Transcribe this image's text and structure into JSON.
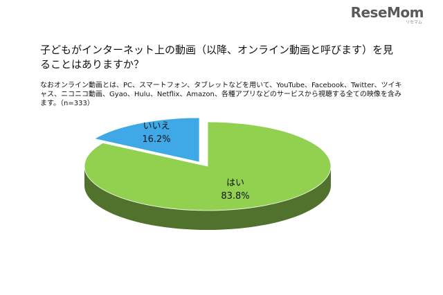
{
  "logo": {
    "text": "ReseMom",
    "sub": "リセマム"
  },
  "question": "子どもがインターネット上の動画（以降、オンライン動画と呼びます）を見ることはありますか？",
  "note": "なおオンライン動画とは、PC、スマートフォン、タブレットなどを用いて、YouTube、Facebook、Twitter、ツイキャス、ニコニコ動画、Gyao、Hulu、Netflix、Amazon、各種アプリなどのサービスから視聴する全ての映像を含みます。（n=333）",
  "chart_data": {
    "type": "pie",
    "style": "3d",
    "categories": [
      "はい",
      "いいえ"
    ],
    "values": [
      83.8,
      16.2
    ],
    "value_labels": [
      "83.8%",
      "16.2%"
    ],
    "colors": {
      "はい": "#92d050",
      "いいえ": "#3ea9e6"
    },
    "legend": "none"
  }
}
